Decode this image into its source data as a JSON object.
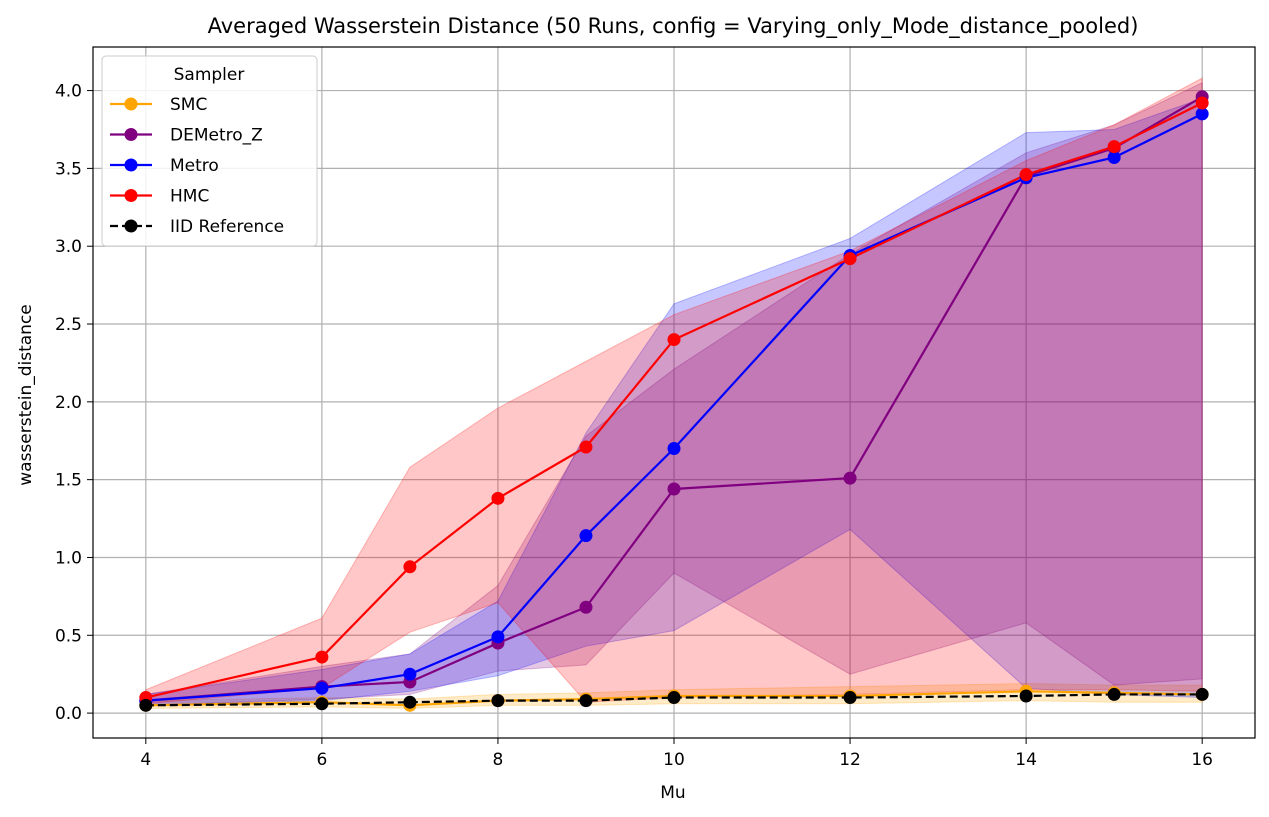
{
  "chart_data": {
    "type": "line",
    "title": "Averaged Wasserstein Distance (50 Runs, config = Varying_only_Mode_distance_pooled)",
    "xlabel": "Mu",
    "ylabel": "wasserstein_distance",
    "xlim": [
      3.4,
      16.6
    ],
    "ylim": [
      -0.16,
      4.28
    ],
    "xticks": [
      4,
      6,
      8,
      10,
      12,
      14,
      16
    ],
    "xtick_labels": [
      "4",
      "6",
      "8",
      "10",
      "12",
      "14",
      "16"
    ],
    "yticks": [
      0,
      0.5,
      1,
      1.5,
      2,
      2.5,
      3,
      3.5,
      4
    ],
    "ytick_labels": [
      "0.0",
      "0.5",
      "1.0",
      "1.5",
      "2.0",
      "2.5",
      "3.0",
      "3.5",
      "4.0"
    ],
    "grid": true,
    "legend": {
      "title": "Sampler",
      "placement": "upper-left"
    },
    "x": [
      4,
      6,
      7,
      8,
      9,
      10,
      12,
      14,
      15,
      16
    ],
    "series": [
      {
        "name": "SMC",
        "color": "#ffa500",
        "linestyle": "solid",
        "values": [
          0.05,
          0.07,
          0.05,
          0.08,
          0.09,
          0.11,
          0.11,
          0.14,
          0.13,
          0.12
        ],
        "band_lower": [
          0.03,
          0.04,
          0.03,
          0.05,
          0.05,
          0.06,
          0.06,
          0.08,
          0.07,
          0.07
        ],
        "band_upper": [
          0.08,
          0.1,
          0.09,
          0.12,
          0.13,
          0.15,
          0.17,
          0.19,
          0.18,
          0.18
        ]
      },
      {
        "name": "DEMetro_Z",
        "color": "#800080",
        "linestyle": "solid",
        "values": [
          0.08,
          0.17,
          0.2,
          0.45,
          0.68,
          1.44,
          1.51,
          3.45,
          3.63,
          3.96
        ],
        "band_lower": [
          0.05,
          0.09,
          0.12,
          0.27,
          0.31,
          0.9,
          0.25,
          0.58,
          0.18,
          0.22
        ],
        "band_upper": [
          0.12,
          0.3,
          0.38,
          0.82,
          1.78,
          2.21,
          2.95,
          3.6,
          3.78,
          4.05
        ]
      },
      {
        "name": "Metro",
        "color": "#0000ff",
        "linestyle": "solid",
        "values": [
          0.08,
          0.16,
          0.25,
          0.49,
          1.14,
          1.7,
          2.94,
          3.44,
          3.57,
          3.85
        ],
        "band_lower": [
          0.05,
          0.08,
          0.14,
          0.24,
          0.43,
          0.53,
          1.18,
          0.16,
          0.12,
          0.1
        ],
        "band_upper": [
          0.12,
          0.28,
          0.38,
          0.72,
          1.8,
          2.63,
          3.05,
          3.73,
          3.75,
          3.95
        ]
      },
      {
        "name": "HMC",
        "color": "#ff0000",
        "linestyle": "solid",
        "values": [
          0.1,
          0.36,
          0.94,
          1.38,
          1.71,
          2.4,
          2.92,
          3.46,
          3.64,
          3.92
        ],
        "band_lower": [
          0.06,
          0.16,
          0.52,
          0.71,
          0.07,
          0.1,
          0.12,
          0.15,
          0.15,
          0.14
        ],
        "band_upper": [
          0.15,
          0.61,
          1.58,
          1.96,
          2.26,
          2.56,
          2.97,
          3.55,
          3.78,
          4.08
        ]
      },
      {
        "name": "IID Reference",
        "color": "#000000",
        "linestyle": "dashed",
        "values": [
          0.05,
          0.06,
          0.07,
          0.08,
          0.08,
          0.1,
          0.1,
          0.11,
          0.12,
          0.12
        ]
      }
    ]
  }
}
